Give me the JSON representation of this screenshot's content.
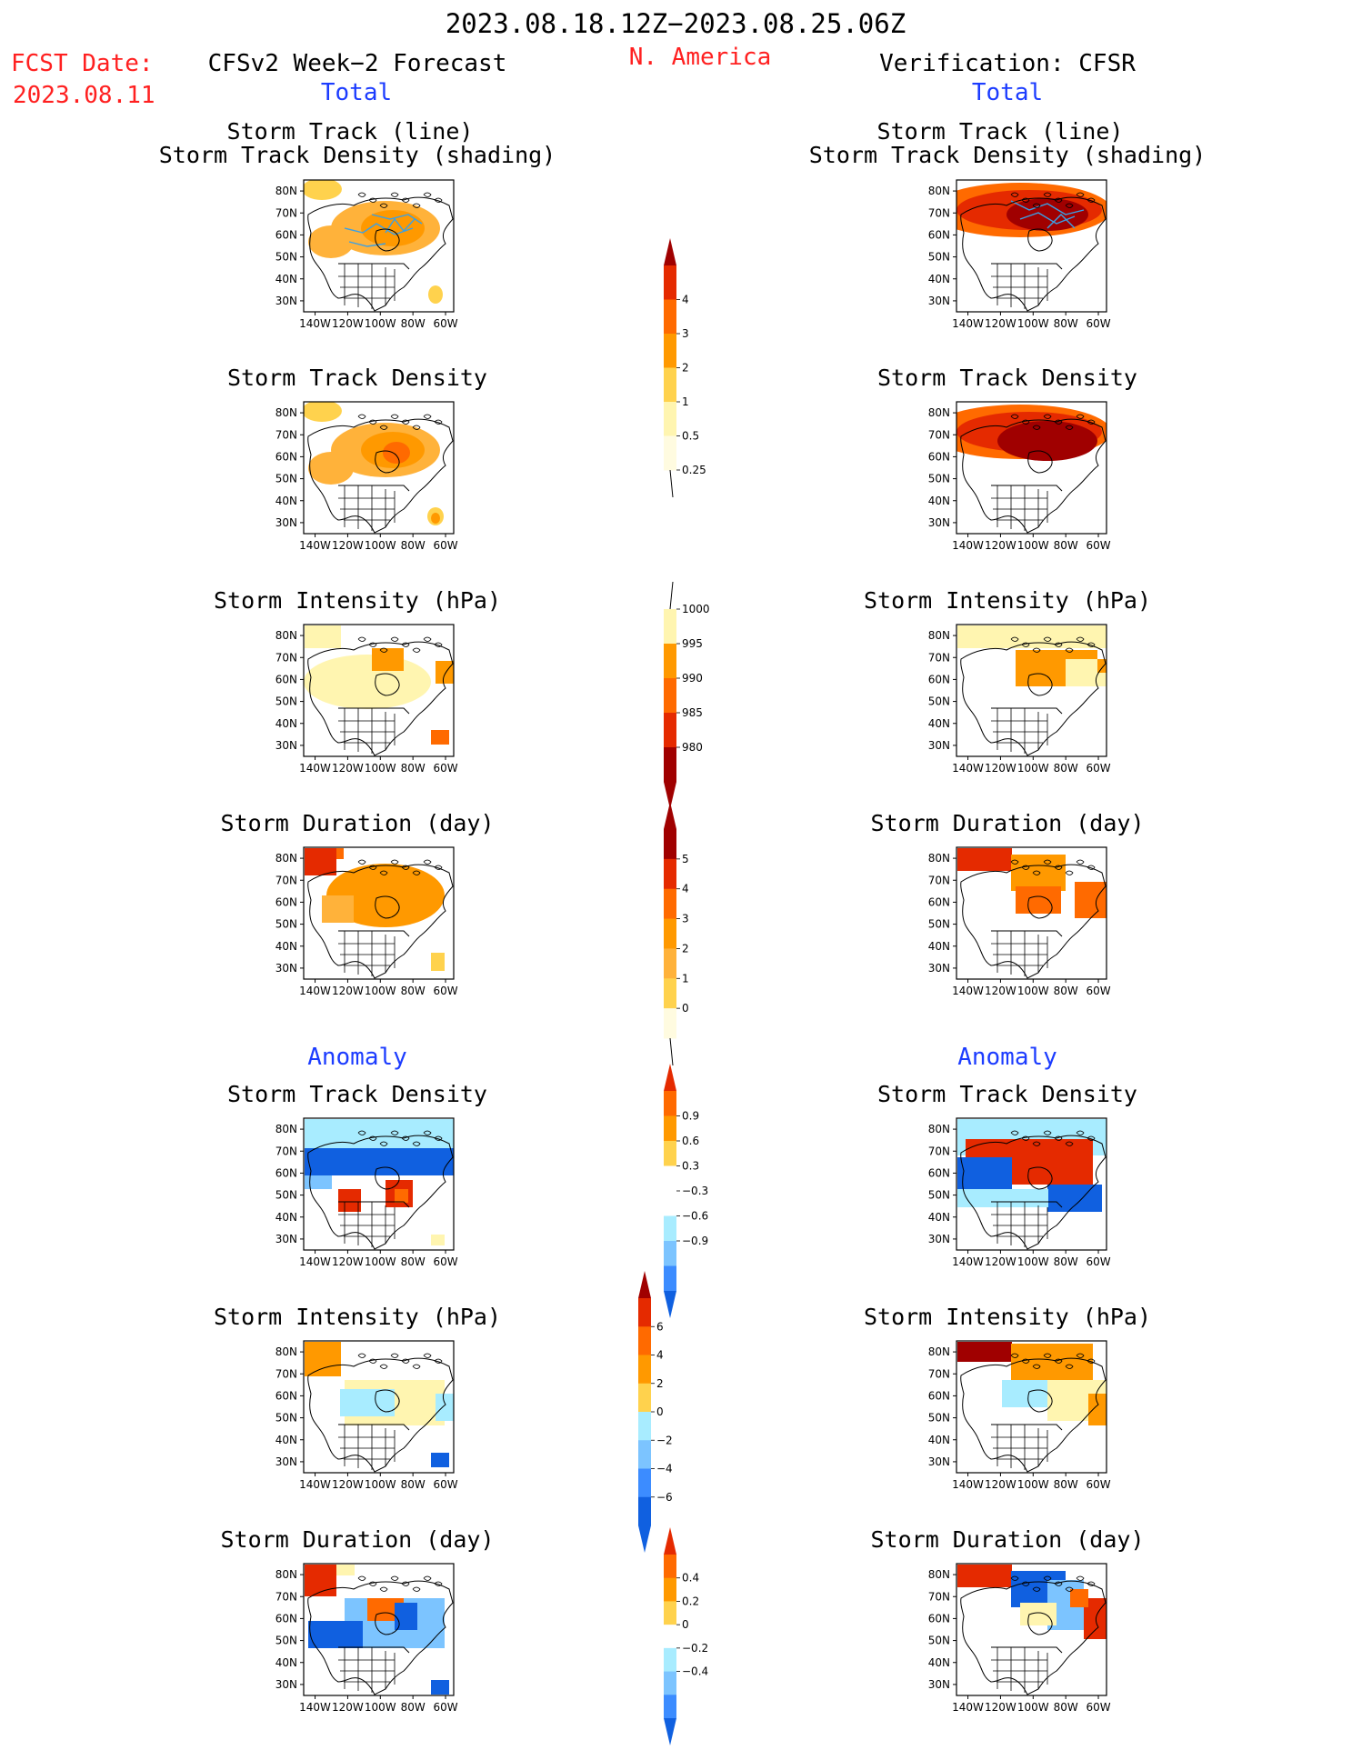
{
  "header": {
    "date_range": "2023.08.18.12Z−2023.08.25.06Z",
    "region": "N. America",
    "fcst_label": "FCST Date:",
    "fcst_date": "2023.08.11",
    "left_model": "CFSv2 Week−2 Forecast",
    "right_model": "Verification: CFSR",
    "left_total": "Total",
    "right_total": "Total",
    "left_anomaly": "Anomaly",
    "right_anomaly": "Anomaly"
  },
  "panels": {
    "p1_line1": "Storm Track (line)",
    "p1_line2": "Storm Track Density (shading)",
    "p2": "Storm Track Density",
    "p3": "Storm Intensity (hPa)",
    "p4": "Storm Duration (day)",
    "p5": "Storm Track Density",
    "p6": "Storm Intensity (hPa)",
    "p7": "Storm Duration (day)"
  },
  "axes": {
    "lat_ticks": [
      "80N",
      "70N",
      "60N",
      "50N",
      "40N",
      "30N"
    ],
    "lon_ticks": [
      "140W",
      "120W",
      "100W",
      "80W",
      "60W"
    ]
  },
  "colors": {
    "pale_yellow": "#fff5b0",
    "yellow": "#ffd24d",
    "light_orange": "#ffb23a",
    "orange": "#ff9900",
    "dark_orange": "#ff6a00",
    "red": "#e52a00",
    "dark_red": "#a00000",
    "light_blue": "#a8ecff",
    "sky_blue": "#7cc4ff",
    "blue": "#3c8cff",
    "deep_blue": "#1060e0",
    "track_line": "#3aa0e6"
  },
  "chart_data": [
    {
      "type": "heatmap",
      "title": "Storm Track Density",
      "colorbar_levels": [
        "4",
        "3",
        "2",
        "1",
        "0.5",
        "0.25"
      ],
      "legend": "shared colorbar for total storm track density"
    },
    {
      "type": "heatmap",
      "title": "Storm Intensity (hPa)",
      "colorbar_levels": [
        "1000",
        "995",
        "990",
        "985",
        "980"
      ]
    },
    {
      "type": "heatmap",
      "title": "Storm Duration (day)",
      "colorbar_levels": [
        "5",
        "4",
        "3",
        "2",
        "1",
        "0"
      ]
    },
    {
      "type": "heatmap",
      "title": "Storm Track Density",
      "colorbar_levels": [
        "0.9",
        "0.6",
        "0.3",
        "−0.3",
        "−0.6",
        "−0.9"
      ]
    },
    {
      "type": "heatmap",
      "title": "Storm Intensity (hPa)",
      "colorbar_levels": [
        "6",
        "4",
        "2",
        "0",
        "−2",
        "−4",
        "−6"
      ]
    },
    {
      "type": "heatmap",
      "title": "Storm Duration (day)",
      "colorbar_levels": [
        "0.4",
        "0.2",
        "0",
        "−0.2",
        "−0.4"
      ]
    }
  ]
}
